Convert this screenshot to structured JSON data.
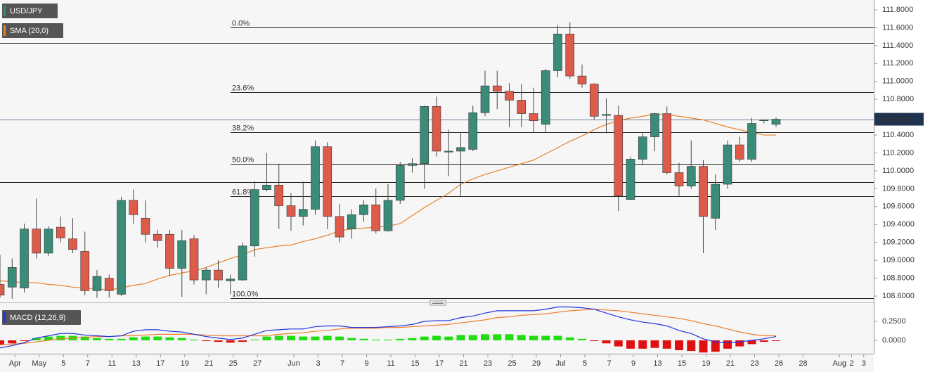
{
  "chart_data": {
    "type": "candlestick",
    "title": "USD/JPY",
    "categories": [
      null,
      "Apr",
      null,
      "May",
      null,
      "5",
      null,
      "7",
      null,
      "11",
      null,
      "13",
      null,
      "17",
      null,
      "19",
      null,
      "21",
      null,
      "25",
      null,
      "27",
      null,
      null,
      "Jun",
      null,
      "3",
      null,
      "7",
      null,
      "9",
      null,
      "11",
      null,
      "15",
      null,
      "17",
      null,
      "21",
      null,
      "23",
      null,
      "25",
      null,
      "29",
      null,
      "Jul",
      null,
      "5",
      null,
      "7",
      null,
      "9",
      null,
      "13",
      null,
      "15",
      null,
      "19",
      null,
      "21",
      null,
      "23",
      null,
      "26",
      null,
      "28",
      null,
      null,
      "Aug",
      "2",
      "3"
    ],
    "open": [
      108.73,
      108.7,
      108.69,
      109.35,
      109.08,
      109.37,
      109.24,
      109.1,
      108.66,
      108.8,
      108.62,
      109.67,
      109.47,
      109.29,
      109.29,
      108.91,
      109.24,
      108.78,
      108.89,
      108.77,
      108.78,
      109.16,
      109.79,
      109.84,
      109.61,
      109.49,
      109.57,
      110.27,
      109.49,
      109.35,
      109.51,
      109.62,
      109.33,
      109.67,
      110.06,
      110.08,
      110.72,
      110.21,
      110.22,
      110.24,
      110.65,
      110.95,
      110.89,
      110.79,
      110.64,
      110.52,
      111.12,
      111.53,
      111.06,
      110.97,
      110.62,
      110.62,
      109.68,
      110.13,
      110.38,
      110.64,
      109.98,
      109.83,
      110.05,
      109.47,
      109.85,
      110.29,
      110.13,
      110.56,
      110.52,
      null,
      null,
      null,
      null,
      null,
      null,
      null
    ],
    "high": [
      109.06,
      109.02,
      109.41,
      109.69,
      109.38,
      109.49,
      109.47,
      109.32,
      108.89,
      108.84,
      109.71,
      109.79,
      109.67,
      109.34,
      109.34,
      109.34,
      109.28,
      108.92,
      109.0,
      108.84,
      109.2,
      109.88,
      110.2,
      110.08,
      109.75,
      109.88,
      110.34,
      110.32,
      109.63,
      109.57,
      109.67,
      109.8,
      109.85,
      110.1,
      110.14,
      110.73,
      110.83,
      110.46,
      110.42,
      110.73,
      111.12,
      111.12,
      110.98,
      110.97,
      110.93,
      111.14,
      111.63,
      111.66,
      111.19,
      110.98,
      110.81,
      110.73,
      110.16,
      110.42,
      110.65,
      110.72,
      110.09,
      110.34,
      110.12,
      109.96,
      110.34,
      110.38,
      110.59,
      110.57,
      110.6,
      null,
      null,
      null,
      null,
      null,
      null,
      null
    ],
    "low": [
      108.58,
      108.57,
      108.64,
      109.02,
      109.05,
      109.2,
      109.08,
      108.61,
      108.58,
      108.58,
      108.6,
      109.41,
      109.2,
      109.14,
      108.83,
      108.59,
      108.73,
      108.62,
      108.69,
      108.62,
      108.77,
      109.04,
      109.77,
      109.35,
      109.33,
      109.39,
      109.51,
      109.35,
      109.2,
      109.24,
      109.43,
      109.3,
      109.32,
      109.63,
      109.98,
      109.8,
      110.16,
      109.94,
      109.72,
      110.22,
      110.61,
      110.69,
      110.49,
      110.49,
      110.43,
      110.43,
      111.05,
      111.03,
      110.93,
      110.57,
      110.42,
      109.55,
      109.68,
      110.06,
      110.22,
      109.96,
      109.72,
      109.8,
      109.08,
      109.34,
      109.8,
      110.1,
      110.1,
      110.53,
      110.49,
      null,
      null,
      null,
      null,
      null,
      null,
      null
    ],
    "close": [
      108.61,
      108.92,
      109.35,
      109.08,
      109.35,
      109.25,
      109.12,
      108.66,
      108.82,
      108.66,
      109.67,
      109.51,
      109.29,
      109.22,
      108.91,
      109.22,
      108.78,
      108.89,
      108.78,
      108.79,
      109.16,
      109.79,
      109.84,
      109.61,
      109.49,
      109.57,
      110.27,
      109.49,
      109.26,
      109.51,
      109.62,
      109.33,
      109.67,
      110.06,
      110.08,
      110.72,
      110.22,
      110.22,
      110.26,
      110.65,
      110.95,
      110.89,
      110.79,
      110.64,
      110.56,
      111.12,
      111.53,
      111.06,
      110.97,
      110.61,
      110.63,
      109.72,
      110.13,
      110.38,
      110.64,
      109.98,
      109.83,
      110.05,
      109.49,
      109.85,
      110.29,
      110.13,
      110.53,
      110.57,
      110.577,
      null,
      null,
      null,
      null,
      null,
      null,
      null
    ],
    "up_color": "#3a8c78",
    "down_color": "#dd5b4b",
    "ylim": [
      108.545,
      111.91
    ],
    "yticks": [
      {
        "value": 111.8,
        "label": "111.8000"
      },
      {
        "value": 111.6,
        "label": "111.6000"
      },
      {
        "value": 111.4,
        "label": "111.4000"
      },
      {
        "value": 111.2,
        "label": "111.2000"
      },
      {
        "value": 111.0,
        "label": "111.0000"
      },
      {
        "value": 110.8,
        "label": "110.8000"
      },
      {
        "value": 110.6,
        "label": "110.6000"
      },
      {
        "value": 110.4,
        "label": "110.4000"
      },
      {
        "value": 110.2,
        "label": "110.2000"
      },
      {
        "value": 110.0,
        "label": "110.0000"
      },
      {
        "value": 109.8,
        "label": "109.8000"
      },
      {
        "value": 109.6,
        "label": "109.6000"
      },
      {
        "value": 109.4,
        "label": "109.4000"
      },
      {
        "value": 109.2,
        "label": "109.2000"
      },
      {
        "value": 109.0,
        "label": "109.0000"
      },
      {
        "value": 108.8,
        "label": "108.8000"
      },
      {
        "value": 108.6,
        "label": "108.6000"
      }
    ],
    "last_price": {
      "value": 110.577,
      "label": "110.5770",
      "color": "#1f3350"
    },
    "sma": {
      "name": "SMA (20,0)",
      "color": "#e8822a",
      "values": [
        108.77,
        108.76,
        108.75,
        108.75,
        108.73,
        108.72,
        108.7,
        108.69,
        108.68,
        108.67,
        108.69,
        108.72,
        108.74,
        108.79,
        108.83,
        108.86,
        108.88,
        108.92,
        108.97,
        109.02,
        109.06,
        109.12,
        109.14,
        109.16,
        109.17,
        109.21,
        109.24,
        109.28,
        109.33,
        109.35,
        109.36,
        109.37,
        109.38,
        109.41,
        109.5,
        109.59,
        109.67,
        109.75,
        109.85,
        109.91,
        109.96,
        110.0,
        110.04,
        110.08,
        110.12,
        110.19,
        110.26,
        110.33,
        110.39,
        110.46,
        110.52,
        110.56,
        110.59,
        110.61,
        110.63,
        110.63,
        110.61,
        110.59,
        110.57,
        110.53,
        110.49,
        110.46,
        110.43,
        110.4,
        110.4,
        null,
        null,
        null,
        null,
        null,
        null,
        null
      ]
    },
    "fib_levels": [
      {
        "label": "0.0%",
        "value": 111.6
      },
      {
        "label": "23.6%",
        "value": 110.88
      },
      {
        "label": "38.2%",
        "value": 110.43
      },
      {
        "label": "50.0%",
        "value": 110.08
      },
      {
        "label": "61.8%",
        "value": 109.72
      },
      {
        "label": "100.0%",
        "value": 108.58
      }
    ],
    "levels": [
      111.43,
      109.87
    ],
    "macd": {
      "name": "MACD (12,26,9)",
      "ylim": [
        -0.18,
        0.48
      ],
      "yticks": [
        {
          "value": 0.25,
          "label": "0.2500"
        },
        {
          "value": 0,
          "label": "0.0000"
        }
      ],
      "macd_line": {
        "color": "#2233dd",
        "values": [
          -0.1,
          -0.07,
          -0.03,
          0.03,
          0.06,
          0.09,
          0.09,
          0.07,
          0.06,
          0.05,
          0.06,
          0.12,
          0.14,
          0.14,
          0.12,
          0.11,
          0.08,
          0.05,
          0.03,
          0.01,
          0.03,
          0.08,
          0.13,
          0.14,
          0.15,
          0.15,
          0.18,
          0.19,
          0.19,
          0.17,
          0.17,
          0.17,
          0.18,
          0.19,
          0.21,
          0.25,
          0.26,
          0.26,
          0.3,
          0.32,
          0.36,
          0.39,
          0.39,
          0.39,
          0.39,
          0.41,
          0.44,
          0.44,
          0.43,
          0.41,
          0.36,
          0.31,
          0.27,
          0.24,
          0.22,
          0.19,
          0.13,
          0.09,
          0.02,
          -0.02,
          -0.03,
          -0.02,
          0.0,
          0.02,
          0.05,
          null,
          null,
          null,
          null,
          null,
          null,
          null
        ]
      },
      "signal_line": {
        "color": "#f07d2c",
        "values": [
          -0.06,
          -0.05,
          -0.04,
          -0.02,
          0.0,
          0.02,
          0.03,
          0.04,
          0.05,
          0.05,
          0.06,
          0.06,
          0.07,
          0.08,
          0.08,
          0.08,
          0.08,
          0.07,
          0.06,
          0.06,
          0.06,
          0.06,
          0.06,
          0.08,
          0.09,
          0.1,
          0.12,
          0.13,
          0.15,
          0.16,
          0.16,
          0.16,
          0.17,
          0.17,
          0.18,
          0.19,
          0.2,
          0.21,
          0.23,
          0.25,
          0.27,
          0.3,
          0.31,
          0.33,
          0.34,
          0.35,
          0.37,
          0.39,
          0.4,
          0.41,
          0.4,
          0.39,
          0.37,
          0.35,
          0.33,
          0.31,
          0.29,
          0.26,
          0.22,
          0.19,
          0.15,
          0.11,
          0.08,
          0.06,
          0.06,
          null,
          null,
          null,
          null,
          null,
          null,
          null
        ]
      },
      "histogram": {
        "up_color": "#22dd11",
        "down_color": "#e01010",
        "values": [
          -0.06,
          -0.04,
          -0.01,
          0.03,
          0.05,
          0.06,
          0.06,
          0.05,
          0.03,
          0.02,
          0.02,
          0.04,
          0.05,
          0.05,
          0.04,
          0.03,
          0.01,
          -0.01,
          -0.02,
          -0.03,
          -0.02,
          0.01,
          0.05,
          0.06,
          0.06,
          0.05,
          0.05,
          0.06,
          0.05,
          0.03,
          0.02,
          0.01,
          0.01,
          0.02,
          0.03,
          0.05,
          0.06,
          0.05,
          0.07,
          0.07,
          0.08,
          0.08,
          0.08,
          0.07,
          0.06,
          0.06,
          0.06,
          0.04,
          0.02,
          -0.01,
          -0.04,
          -0.08,
          -0.11,
          -0.11,
          -0.1,
          -0.11,
          -0.13,
          -0.14,
          -0.16,
          -0.15,
          -0.11,
          -0.08,
          -0.05,
          -0.02,
          -0.01,
          null,
          null,
          null,
          null,
          null,
          null,
          null
        ]
      }
    }
  }
}
